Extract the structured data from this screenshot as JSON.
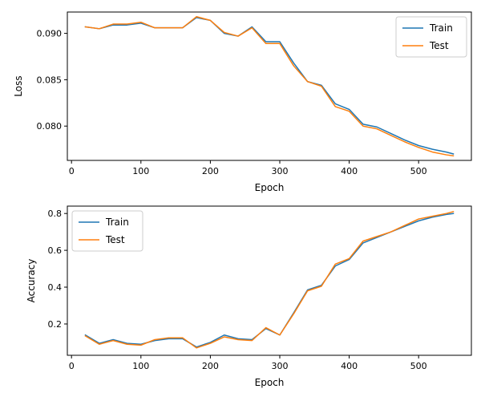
{
  "colors": {
    "train": "#1f77b4",
    "test": "#ff7f0e"
  },
  "chart_data": [
    {
      "type": "line",
      "title": "",
      "xlabel": "Epoch",
      "ylabel": "Loss",
      "xlim": [
        -6,
        576
      ],
      "ylim": [
        0.0763,
        0.0923
      ],
      "xticks": [
        0,
        100,
        200,
        300,
        400,
        500
      ],
      "yticks": [
        0.08,
        0.085,
        0.09
      ],
      "ytick_labels": [
        "0.080",
        "0.085",
        "0.090"
      ],
      "grid": false,
      "legend": "top-right",
      "x": [
        20,
        40,
        60,
        80,
        100,
        120,
        140,
        160,
        180,
        200,
        220,
        240,
        260,
        280,
        300,
        320,
        340,
        360,
        380,
        400,
        420,
        440,
        460,
        480,
        500,
        520,
        540,
        550
      ],
      "series": [
        {
          "name": "Train",
          "color_key": "train",
          "values": [
            0.0907,
            0.0905,
            0.0909,
            0.0909,
            0.0911,
            0.0906,
            0.0906,
            0.0906,
            0.0917,
            0.0914,
            0.09,
            0.0897,
            0.0907,
            0.0891,
            0.0891,
            0.0868,
            0.0848,
            0.0844,
            0.0824,
            0.0818,
            0.0802,
            0.0799,
            0.0792,
            0.0785,
            0.0779,
            0.0775,
            0.0772,
            0.077
          ]
        },
        {
          "name": "Test",
          "color_key": "test",
          "values": [
            0.0907,
            0.0905,
            0.091,
            0.091,
            0.0912,
            0.0906,
            0.0906,
            0.0906,
            0.0918,
            0.0914,
            0.0901,
            0.0897,
            0.0906,
            0.0889,
            0.0889,
            0.0865,
            0.0848,
            0.0843,
            0.0821,
            0.0816,
            0.08,
            0.0797,
            0.079,
            0.0783,
            0.0777,
            0.0772,
            0.0769,
            0.0768
          ]
        }
      ]
    },
    {
      "type": "line",
      "title": "",
      "xlabel": "Epoch",
      "ylabel": "Accuracy",
      "xlim": [
        -6,
        576
      ],
      "ylim": [
        0.03,
        0.84
      ],
      "xticks": [
        0,
        100,
        200,
        300,
        400,
        500
      ],
      "yticks": [
        0.2,
        0.4,
        0.6,
        0.8
      ],
      "ytick_labels": [
        "0.2",
        "0.4",
        "0.6",
        "0.8"
      ],
      "grid": false,
      "legend": "top-left",
      "x": [
        20,
        40,
        60,
        80,
        100,
        120,
        140,
        160,
        180,
        200,
        220,
        240,
        260,
        280,
        300,
        320,
        340,
        360,
        380,
        400,
        420,
        440,
        460,
        480,
        500,
        520,
        540,
        550
      ],
      "series": [
        {
          "name": "Train",
          "color_key": "train",
          "values": [
            0.14,
            0.095,
            0.115,
            0.095,
            0.09,
            0.11,
            0.12,
            0.12,
            0.075,
            0.1,
            0.14,
            0.12,
            0.115,
            0.175,
            0.14,
            0.26,
            0.385,
            0.41,
            0.515,
            0.55,
            0.64,
            0.67,
            0.7,
            0.73,
            0.76,
            0.78,
            0.795,
            0.8
          ]
        },
        {
          "name": "Test",
          "color_key": "test",
          "values": [
            0.135,
            0.09,
            0.11,
            0.09,
            0.085,
            0.115,
            0.125,
            0.125,
            0.07,
            0.095,
            0.13,
            0.115,
            0.11,
            0.18,
            0.14,
            0.255,
            0.38,
            0.405,
            0.525,
            0.555,
            0.65,
            0.675,
            0.7,
            0.735,
            0.77,
            0.785,
            0.8,
            0.81
          ]
        }
      ]
    }
  ]
}
